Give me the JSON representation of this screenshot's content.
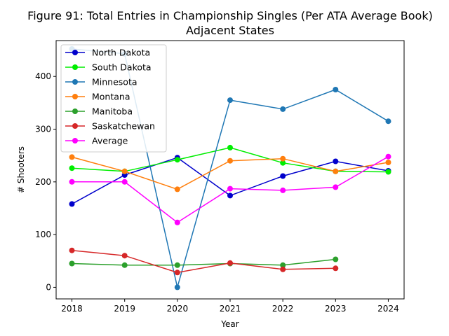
{
  "chart_data": {
    "type": "line",
    "title_line1": "Figure 91: Total Entries in Championship Singles (Per ATA Average Book)",
    "title_line2": "Adjacent States",
    "xlabel": "Year",
    "ylabel": "# Shooters",
    "x": [
      2018,
      2019,
      2020,
      2021,
      2022,
      2023,
      2024
    ],
    "x_ticks": [
      "2018",
      "2019",
      "2020",
      "2021",
      "2022",
      "2023",
      "2024"
    ],
    "y_ticks": [
      "0",
      "100",
      "200",
      "300",
      "400"
    ],
    "xlim": [
      2017.7,
      2024.3
    ],
    "ylim": [
      -22,
      468
    ],
    "grid": false,
    "legend_position": "top-left",
    "series": [
      {
        "name": "North Dakota",
        "color": "#0000cc",
        "values": [
          158,
          213,
          246,
          174,
          211,
          239,
          221
        ]
      },
      {
        "name": "South Dakota",
        "color": "#00ee00",
        "values": [
          226,
          220,
          242,
          265,
          236,
          220,
          219
        ]
      },
      {
        "name": "Minnesota",
        "color": "#1f77b4",
        "values": [
          452,
          443,
          0,
          355,
          338,
          375,
          315
        ]
      },
      {
        "name": "Montana",
        "color": "#ff7f0e",
        "values": [
          247,
          220,
          186,
          240,
          244,
          220,
          237
        ]
      },
      {
        "name": "Manitoba",
        "color": "#2ca02c",
        "values": [
          45,
          42,
          42,
          45,
          42,
          53,
          null
        ]
      },
      {
        "name": "Saskatchewan",
        "color": "#d62728",
        "values": [
          70,
          60,
          28,
          46,
          34,
          36,
          null
        ]
      },
      {
        "name": "Average",
        "color": "#ff00ff",
        "values": [
          200,
          200,
          123,
          187,
          184,
          190,
          248
        ]
      }
    ]
  }
}
